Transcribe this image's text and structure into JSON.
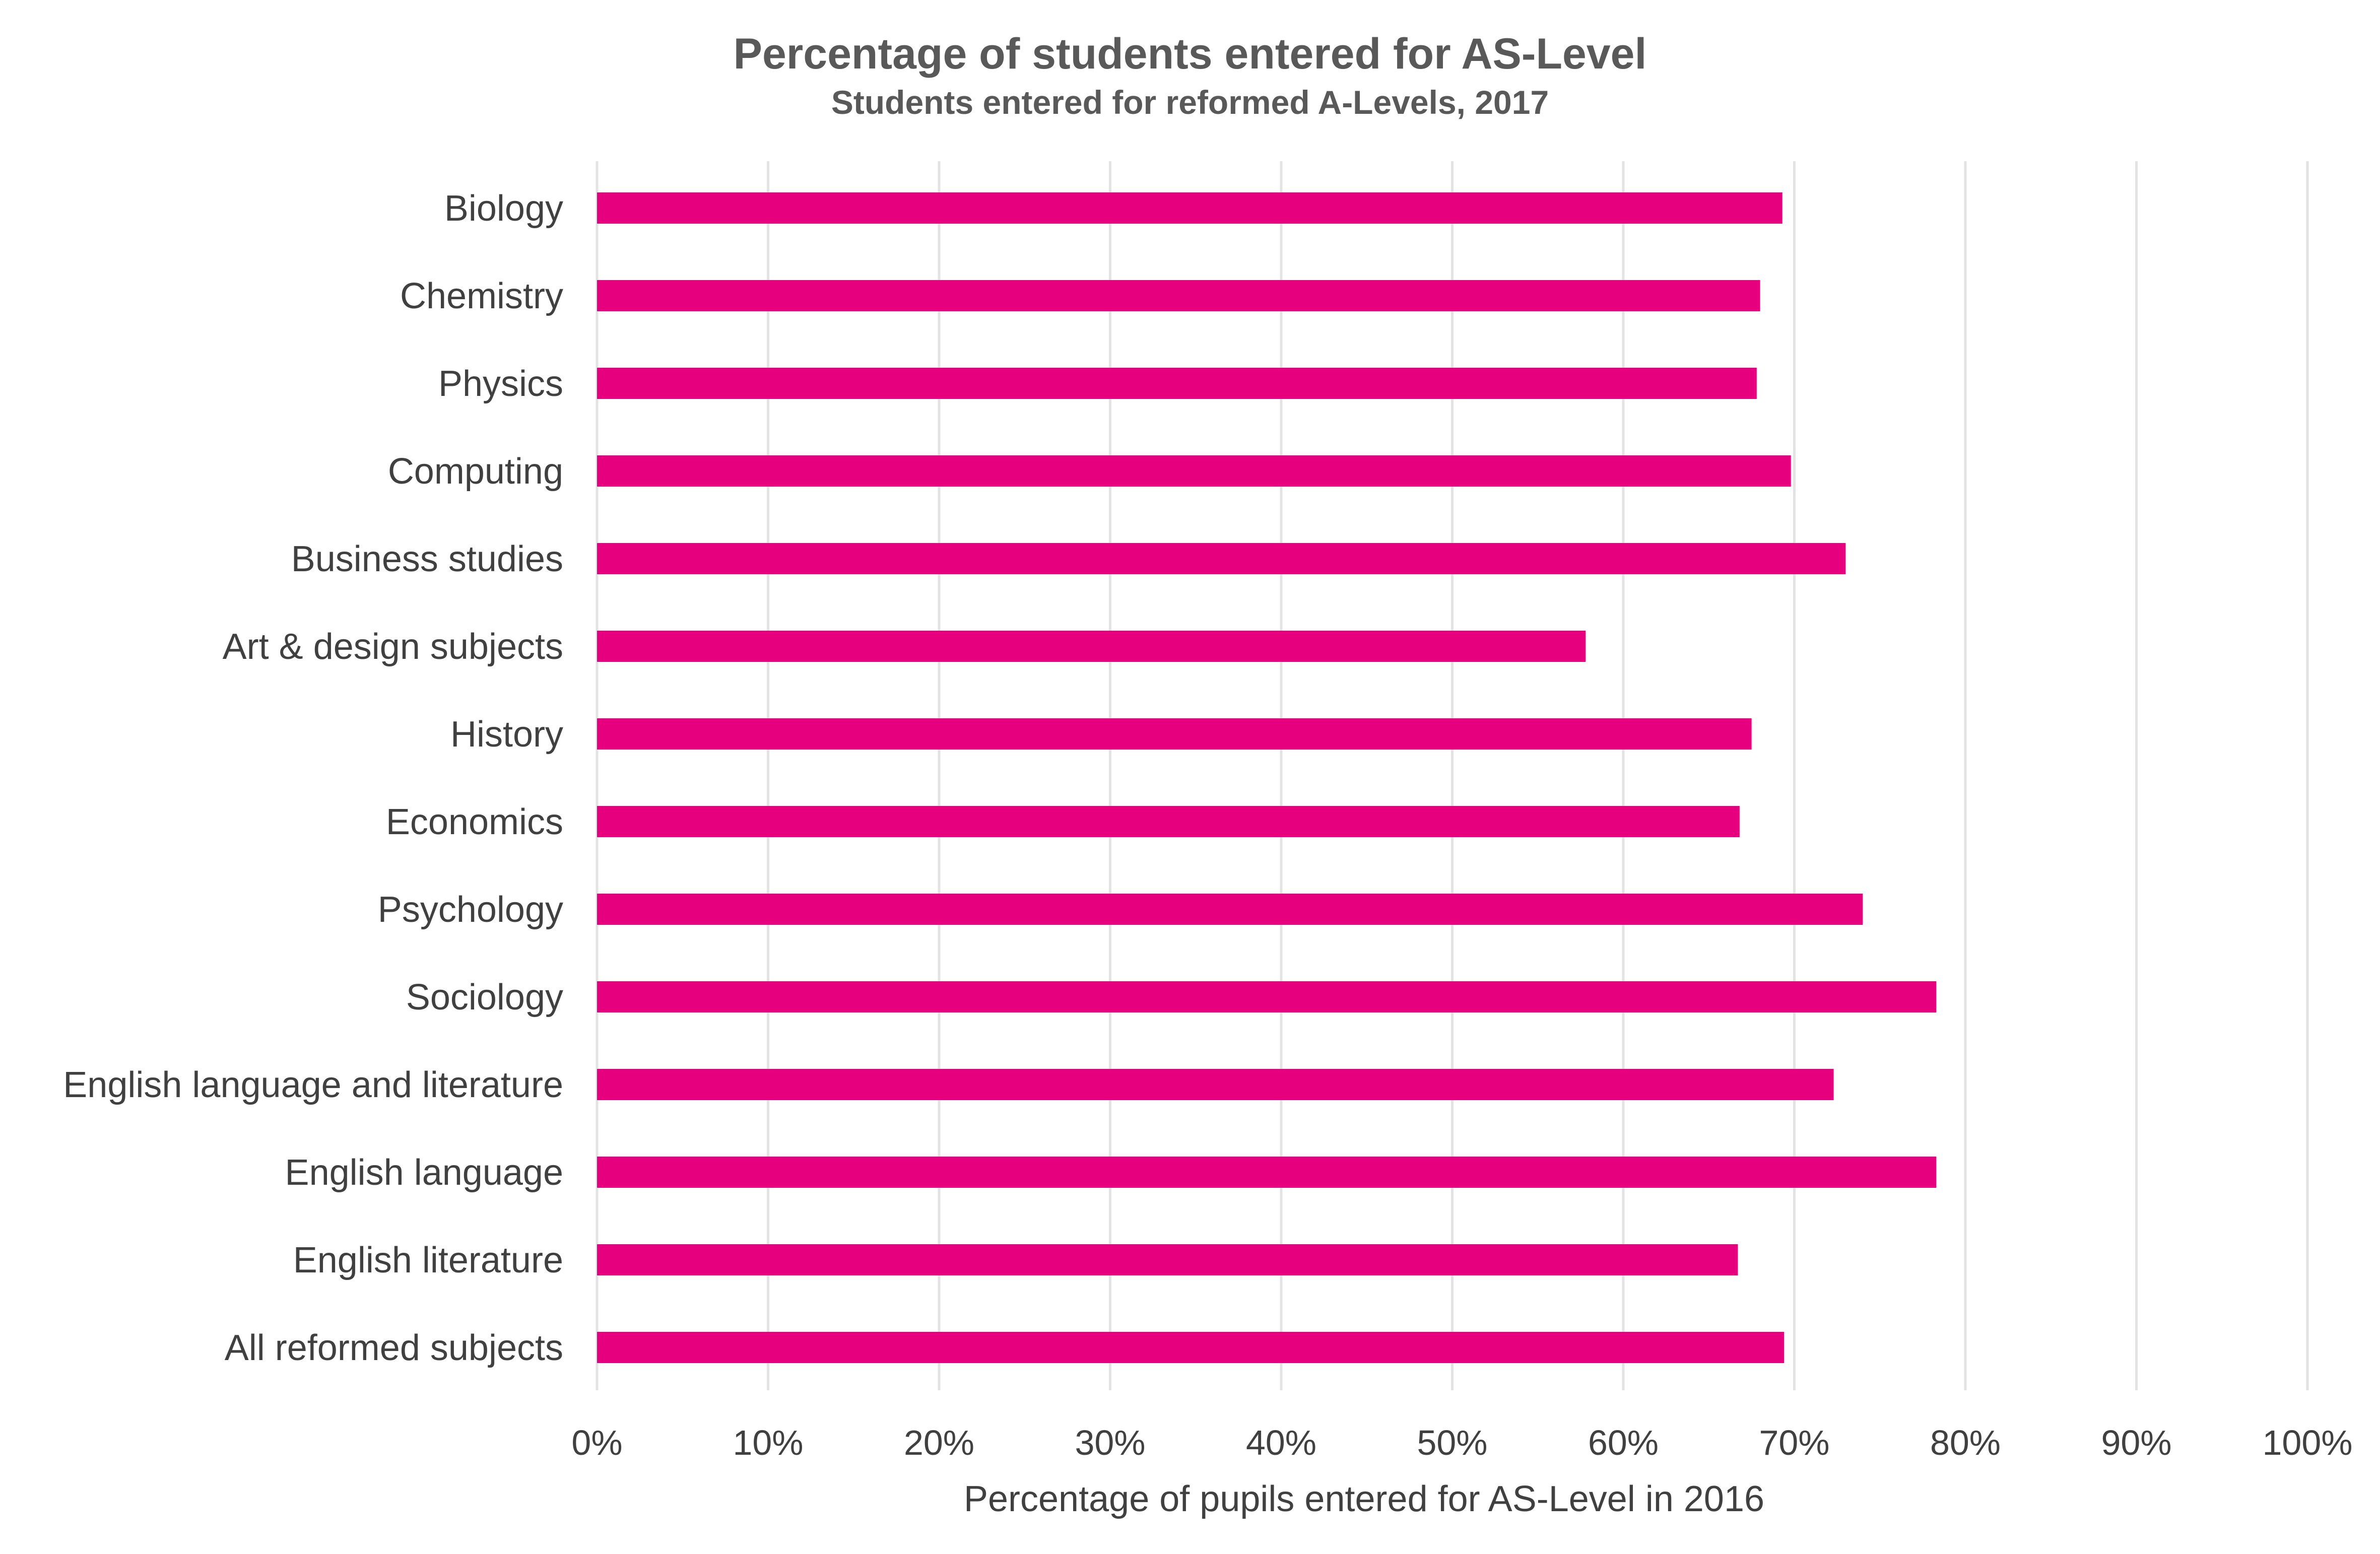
{
  "chart_data": {
    "type": "bar",
    "orientation": "horizontal",
    "title": "Percentage of students entered for AS-Level",
    "subtitle": "Students entered for reformed A-Levels, 2017",
    "xlabel": "Percentage of pupils entered for AS-Level in 2016",
    "ylabel": "",
    "xlim": [
      0,
      100
    ],
    "x_ticks": [
      "0%",
      "10%",
      "20%",
      "30%",
      "40%",
      "50%",
      "60%",
      "70%",
      "80%",
      "90%",
      "100%"
    ],
    "grid": "vertical",
    "legend": "none",
    "bar_color": "#e6007e",
    "categories": [
      "Biology",
      "Chemistry",
      "Physics",
      "Computing",
      "Business studies",
      "Art & design subjects",
      "History",
      "Economics",
      "Psychology",
      "Sociology",
      "English language and literature",
      "English language",
      "English literature",
      "All reformed subjects"
    ],
    "values": [
      69.3,
      68.0,
      67.8,
      69.8,
      73.0,
      57.8,
      67.5,
      66.8,
      74.0,
      78.3,
      72.3,
      78.3,
      66.7,
      69.4
    ]
  }
}
